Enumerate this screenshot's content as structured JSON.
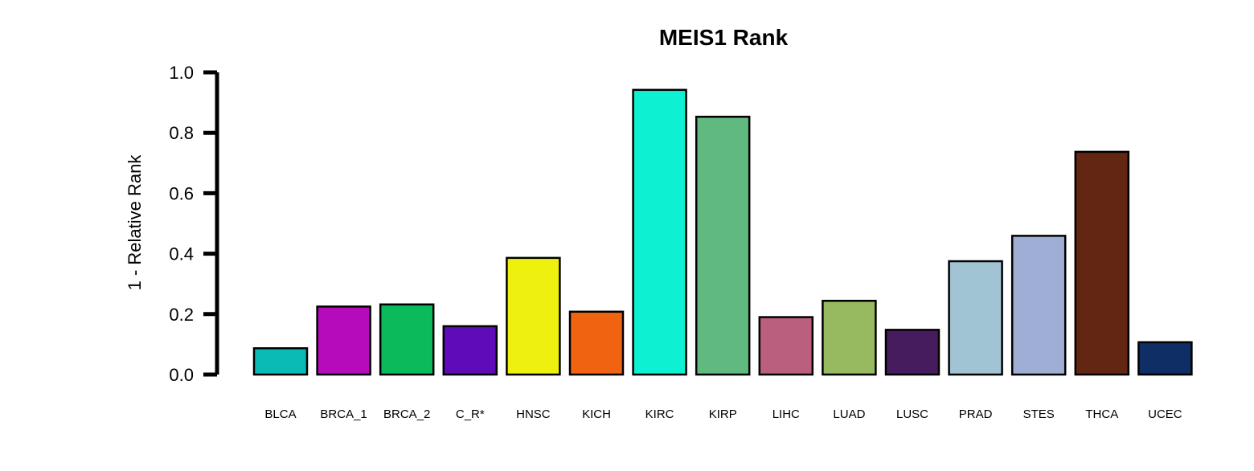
{
  "chart_data": {
    "type": "bar",
    "title": "MEIS1 Rank",
    "xlabel": "",
    "ylabel": "1 - Relative Rank",
    "ylim": [
      0,
      1
    ],
    "yticks": [
      "0.0",
      "0.2",
      "0.4",
      "0.6",
      "0.8",
      "1.0"
    ],
    "categories": [
      "BLCA",
      "BRCA_1",
      "BRCA_2",
      "C_R*",
      "HNSC",
      "KICH",
      "KIRC",
      "KIRP",
      "LIHC",
      "LUAD",
      "LUSC",
      "PRAD",
      "STES",
      "THCA",
      "UCEC"
    ],
    "values": [
      0.087,
      0.225,
      0.232,
      0.16,
      0.386,
      0.208,
      0.942,
      0.853,
      0.19,
      0.244,
      0.148,
      0.375,
      0.459,
      0.737,
      0.107
    ],
    "colors": [
      "#0ABAB5",
      "#B50BBA",
      "#0BBA5A",
      "#600BBA",
      "#EEF00E",
      "#F06310",
      "#0DF0D2",
      "#60BA80",
      "#BA607E",
      "#97BA60",
      "#471C5E",
      "#A0C4D4",
      "#9EAED4",
      "#632612",
      "#0F2E66"
    ],
    "grid": false,
    "legend": "none"
  }
}
